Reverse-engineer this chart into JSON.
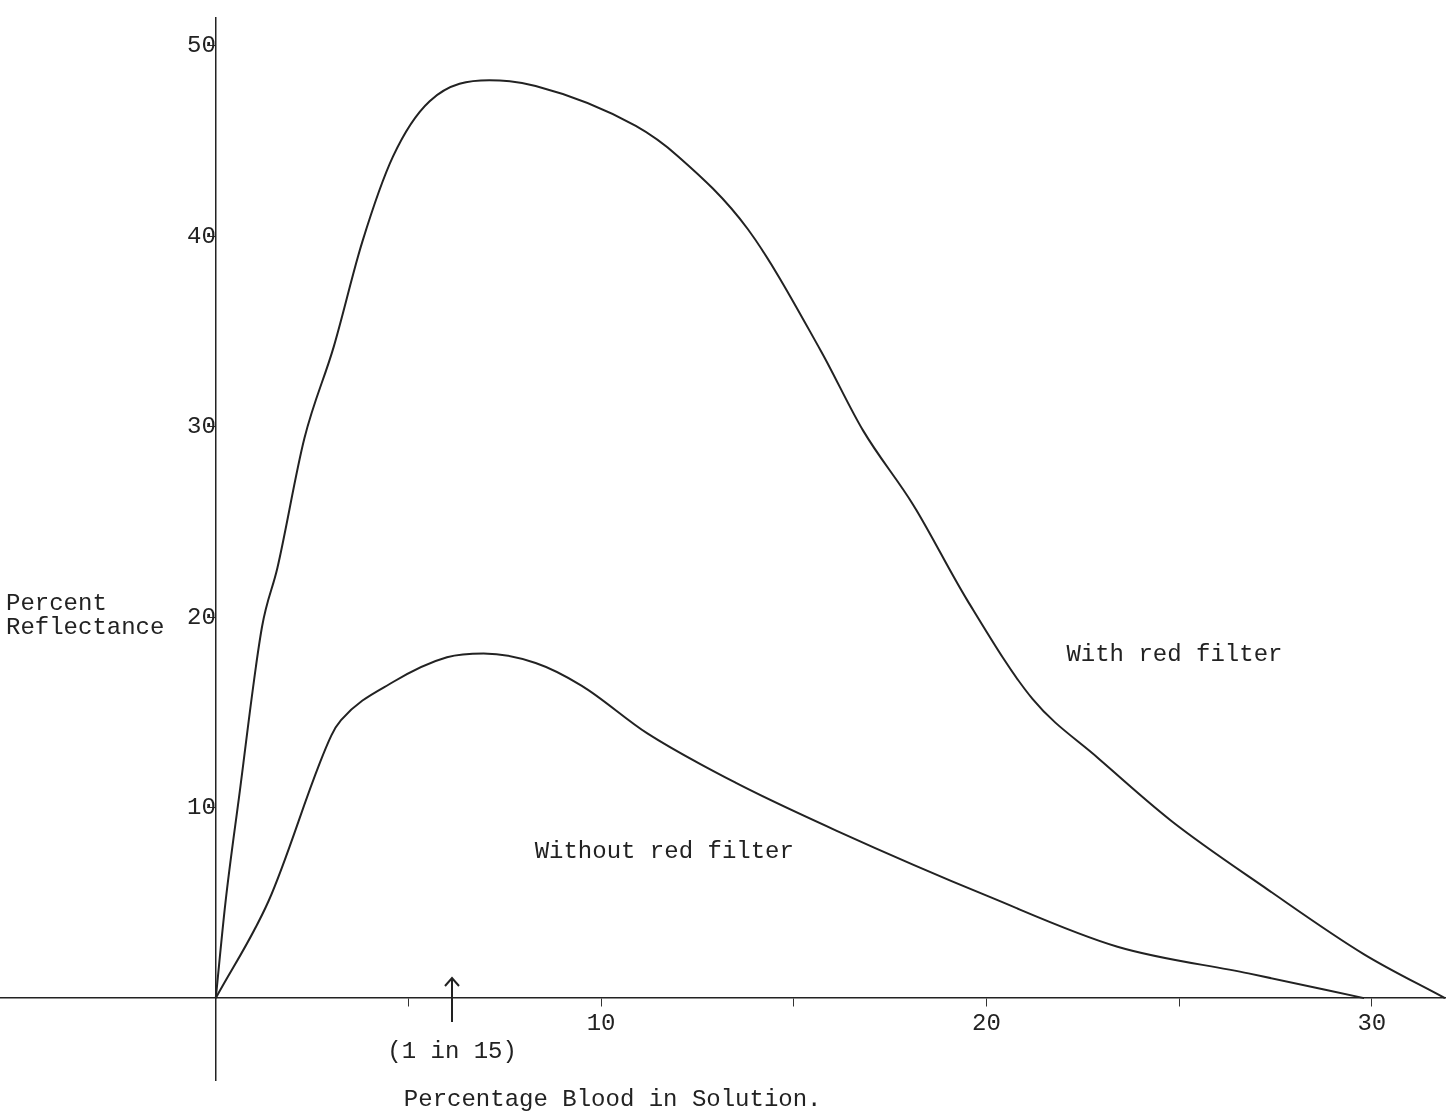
{
  "chart_data": {
    "type": "line",
    "xlabel": "Percentage Blood in Solution.",
    "ylabel": "Percent Reflectance",
    "xlim": [
      -5.6,
      31.9
    ],
    "ylim": [
      -4.3,
      51.5
    ],
    "xticks": [
      {
        "value": 5,
        "label": null
      },
      10,
      {
        "value": 15,
        "label": null
      },
      20,
      {
        "value": 25,
        "label": null
      },
      30
    ],
    "yticks": [
      10,
      20,
      30,
      40,
      50
    ],
    "grid": false,
    "legend": false,
    "marker": "none",
    "line_style": "solid",
    "series": [
      {
        "name": "With red filter",
        "color": "#222222",
        "x": [
          0,
          0.25,
          0.6,
          1.2,
          1.6,
          2.3,
          3.06,
          3.8,
          4.6,
          5.55,
          7.1,
          8.3,
          10.9,
          12.0,
          13.8,
          15.7,
          16.8,
          18.1,
          19.5,
          21.2,
          22.9,
          24.8,
          27.3,
          29.8,
          31.9
        ],
        "values": [
          0,
          5,
          10.5,
          19.5,
          22.6,
          29.4,
          34.2,
          39.7,
          44.2,
          47.1,
          48.2,
          47.9,
          45.8,
          44.2,
          40.4,
          34.0,
          29.8,
          25.9,
          20.9,
          15.7,
          12.6,
          9.3,
          5.7,
          2.3,
          0
        ]
      },
      {
        "name": "Without red filter",
        "color": "#222222",
        "x": [
          0,
          1.37,
          3.0,
          3.25,
          4.6,
          6.0,
          6.95,
          8.3,
          9.5,
          11.2,
          13.5,
          16.1,
          20.1,
          23.4,
          26.8,
          29.8
        ],
        "values": [
          0,
          5.1,
          13.8,
          14.6,
          16.6,
          17.9,
          18.1,
          17.6,
          16.4,
          13.9,
          11.3,
          8.8,
          5.3,
          2.7,
          1.3,
          0
        ]
      }
    ],
    "annotations": [
      "(1 in 15)"
    ]
  }
}
